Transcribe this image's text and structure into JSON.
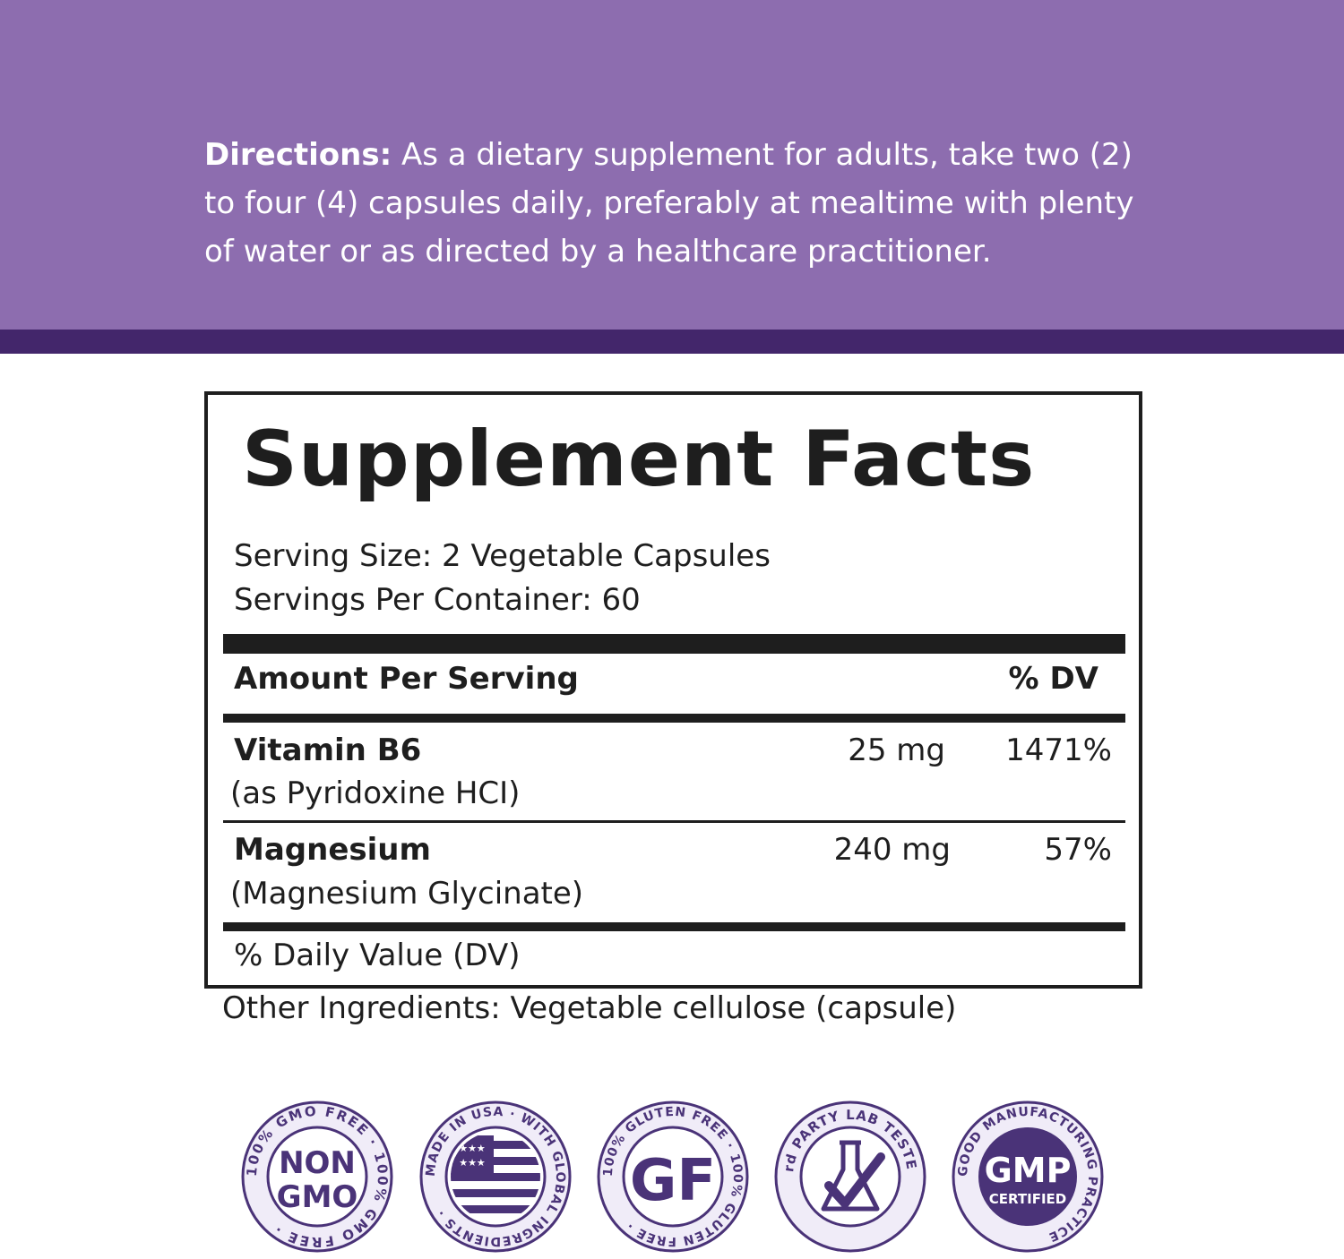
{
  "directions": {
    "label": "Directions:",
    "text": "As a dietary supplement for adults, take two (2) to four (4) capsules daily, preferably at mealtime with plenty of water or as directed by a healthcare practitioner."
  },
  "facts": {
    "title": "Supplement Facts",
    "serving_size": "Serving Size:  2 Vegetable Capsules",
    "servings_per_container": "Servings Per Container:  60",
    "header_amount": "Amount Per Serving",
    "header_dv": "% DV",
    "rows": [
      {
        "name": "Vitamin B6",
        "form": "(as Pyridoxine HCI)",
        "amount": "25 mg",
        "dv": "1471%"
      },
      {
        "name": "Magnesium",
        "form": "(Magnesium Glycinate)",
        "amount": "240 mg",
        "dv": "57%"
      }
    ],
    "footnote": "% Daily Value (DV)"
  },
  "other_ingredients": "Other Ingredients:  Vegetable cellulose (capsule)",
  "badges": [
    {
      "icon": "non-gmo-badge-icon",
      "ring_text": "100% GMO FREE · 100% GMO FREE ·",
      "center_line1": "NON",
      "center_line2": "GMO"
    },
    {
      "icon": "made-in-usa-badge-icon",
      "ring_text": "MADE IN USA · WITH GLOBAL INGREDIENTS ·"
    },
    {
      "icon": "gluten-free-badge-icon",
      "ring_text": "100% GLUTEN FREE · 100% GLUTEN FREE ·",
      "center_line1": "GF"
    },
    {
      "icon": "lab-tested-badge-icon",
      "ring_text": "3rd PARTY LAB TESTED"
    },
    {
      "icon": "gmp-badge-icon",
      "ring_text": "GOOD MANUFACTURING PRACTICE",
      "center_line1": "GMP",
      "center_line2": "CERTIFIED"
    }
  ],
  "colors": {
    "band": "#8d6daf",
    "band_dark": "#43266b",
    "badge_purple": "#4a3378",
    "badge_fill": "#f0ecf8",
    "text": "#1e1e1e"
  }
}
